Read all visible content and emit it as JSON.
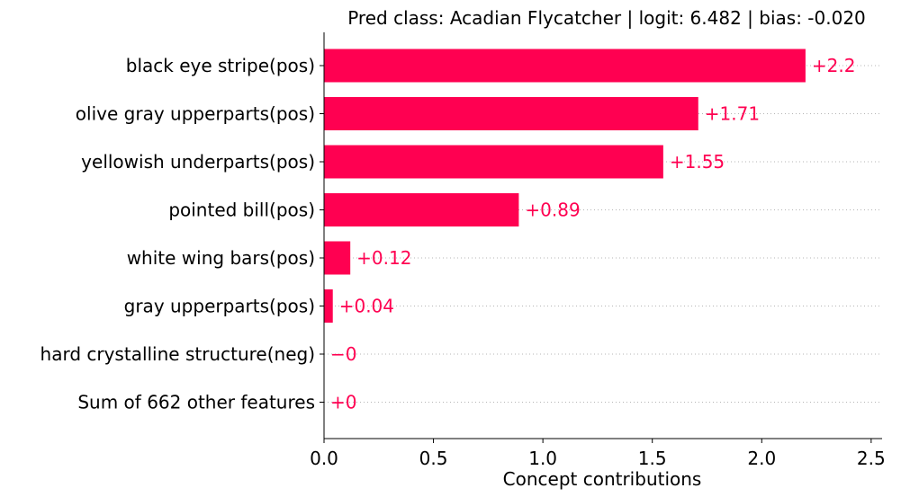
{
  "chart_data": {
    "type": "bar",
    "orientation": "horizontal",
    "title": "Pred class: Acadian Flycatcher | logit: 6.482 | bias: -0.020",
    "xlabel": "Concept contributions",
    "ylabel": "",
    "categories": [
      "black eye stripe(pos)",
      "olive gray upperparts(pos)",
      "yellowish underparts(pos)",
      "pointed bill(pos)",
      "white wing bars(pos)",
      "gray upperparts(pos)",
      "hard crystalline structure(neg)",
      "Sum of 662 other features"
    ],
    "values": [
      2.2,
      1.71,
      1.55,
      0.89,
      0.12,
      0.04,
      0,
      0
    ],
    "value_labels": [
      "+2.2",
      "+1.71",
      "+1.55",
      "+0.89",
      "+0.12",
      "+0.04",
      "−0",
      "+0"
    ],
    "xlim": [
      0,
      2.55
    ],
    "xticks": [
      0.0,
      0.5,
      1.0,
      1.5,
      2.0,
      2.5
    ],
    "xtick_labels": [
      "0.0",
      "0.5",
      "1.0",
      "1.5",
      "2.0",
      "2.5"
    ],
    "bar_color": "#ff0051",
    "gridlines": "dotted horizontal per row",
    "legend": "none"
  }
}
